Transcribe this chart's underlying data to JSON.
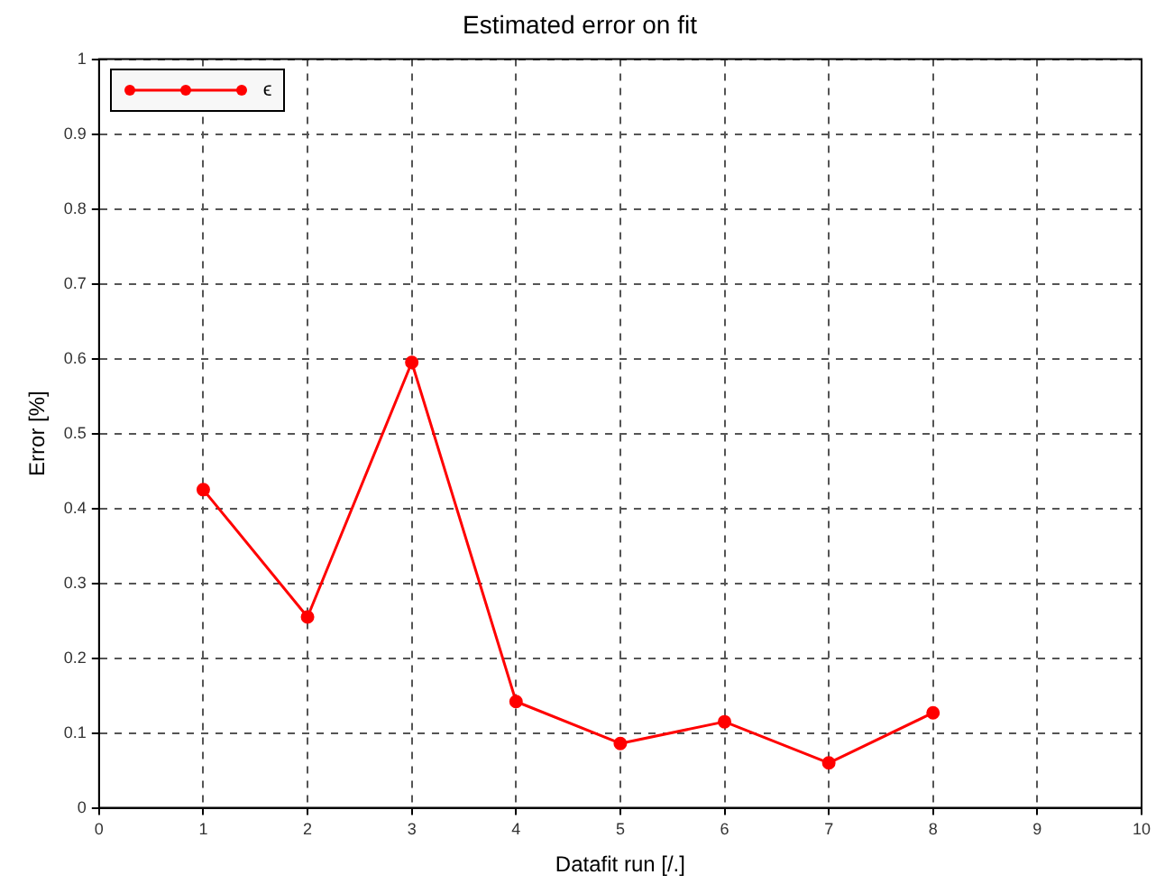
{
  "chart_data": {
    "type": "line",
    "title": "Estimated error on fit",
    "xlabel": "Datafit run [/.]",
    "ylabel": "Error [%]",
    "x": [
      1,
      2,
      3,
      4,
      5,
      6,
      7,
      8
    ],
    "series": [
      {
        "name": "ϵ",
        "color": "#ff0000",
        "values": [
          0.425,
          0.255,
          0.595,
          0.142,
          0.086,
          0.115,
          0.06,
          0.127
        ]
      }
    ],
    "xlim": [
      0,
      10
    ],
    "xticks": [
      0,
      1,
      2,
      3,
      4,
      5,
      6,
      7,
      8,
      9,
      10
    ],
    "ylim": [
      0,
      1
    ],
    "yticks": [
      0,
      0.1,
      0.2,
      0.3,
      0.4,
      0.5,
      0.6,
      0.7,
      0.8,
      0.9,
      1
    ],
    "grid": true,
    "legend": "top left",
    "marker": "circle",
    "line_style": "solid"
  }
}
